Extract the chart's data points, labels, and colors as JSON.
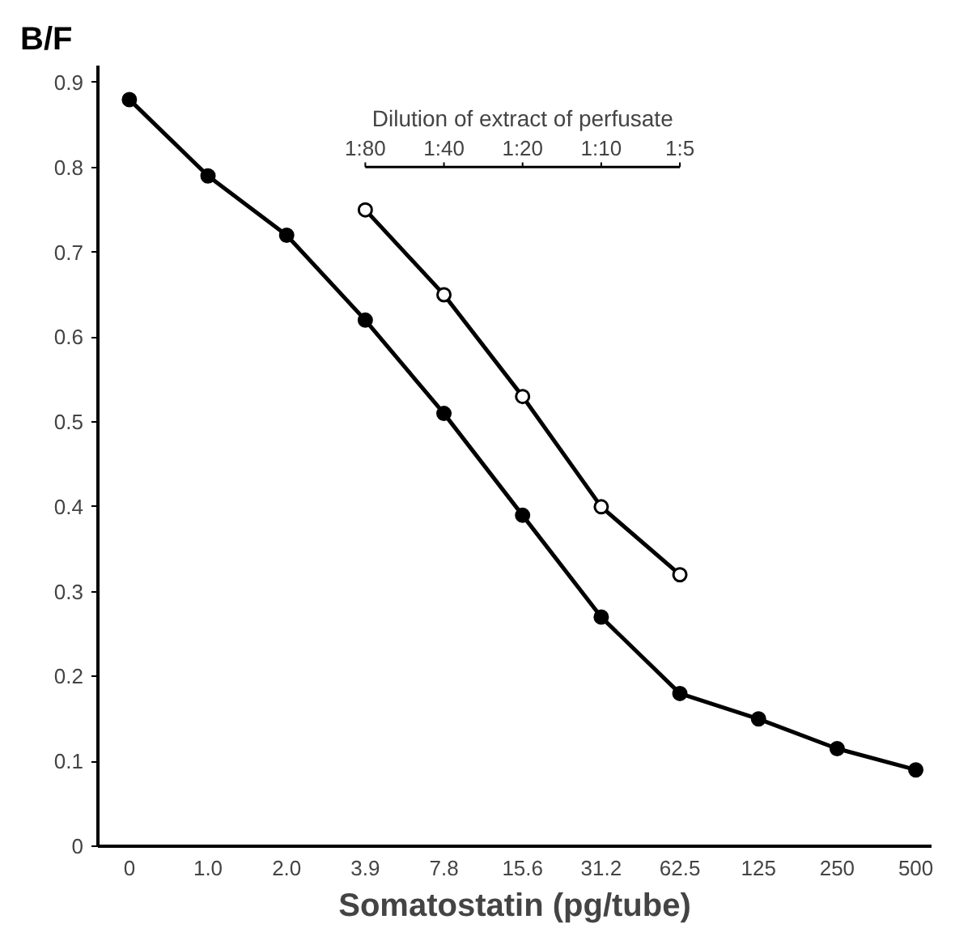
{
  "chart_data": {
    "type": "line",
    "ylabel": "B/F",
    "xlabel": "Somatostatin (pg/tube)",
    "categories": [
      "0",
      "1.0",
      "2.0",
      "3.9",
      "7.8",
      "15.6",
      "31.2",
      "62.5",
      "125",
      "250",
      "500"
    ],
    "series": [
      {
        "color": "#000000",
        "values": [
          0.88,
          0.79,
          0.72,
          0.62,
          0.51,
          0.39,
          0.27,
          0.18,
          0.15,
          0.115,
          0.09
        ]
      },
      {
        "color": "#000000",
        "colors": [
          "#ffffff",
          "#ffffff",
          "#ffffff",
          "#ffffff",
          "#ffffff"
        ],
        "x": [
          "3.9",
          "7.8",
          "15.6",
          "31.2",
          "62.5"
        ],
        "values": [
          0.75,
          0.65,
          0.53,
          0.4,
          0.32
        ]
      }
    ],
    "ylim": [
      0,
      0.92
    ],
    "yticks": [
      0,
      0.1,
      0.2,
      0.3,
      0.4,
      0.5,
      0.6,
      0.7,
      0.8,
      0.9
    ],
    "grid": false,
    "marker": "circle",
    "line_style": "solid",
    "annotations": [
      "Dilution of extract of perfusate",
      "1:80",
      "1:40",
      "1:20",
      "1:10",
      "1:5"
    ]
  }
}
